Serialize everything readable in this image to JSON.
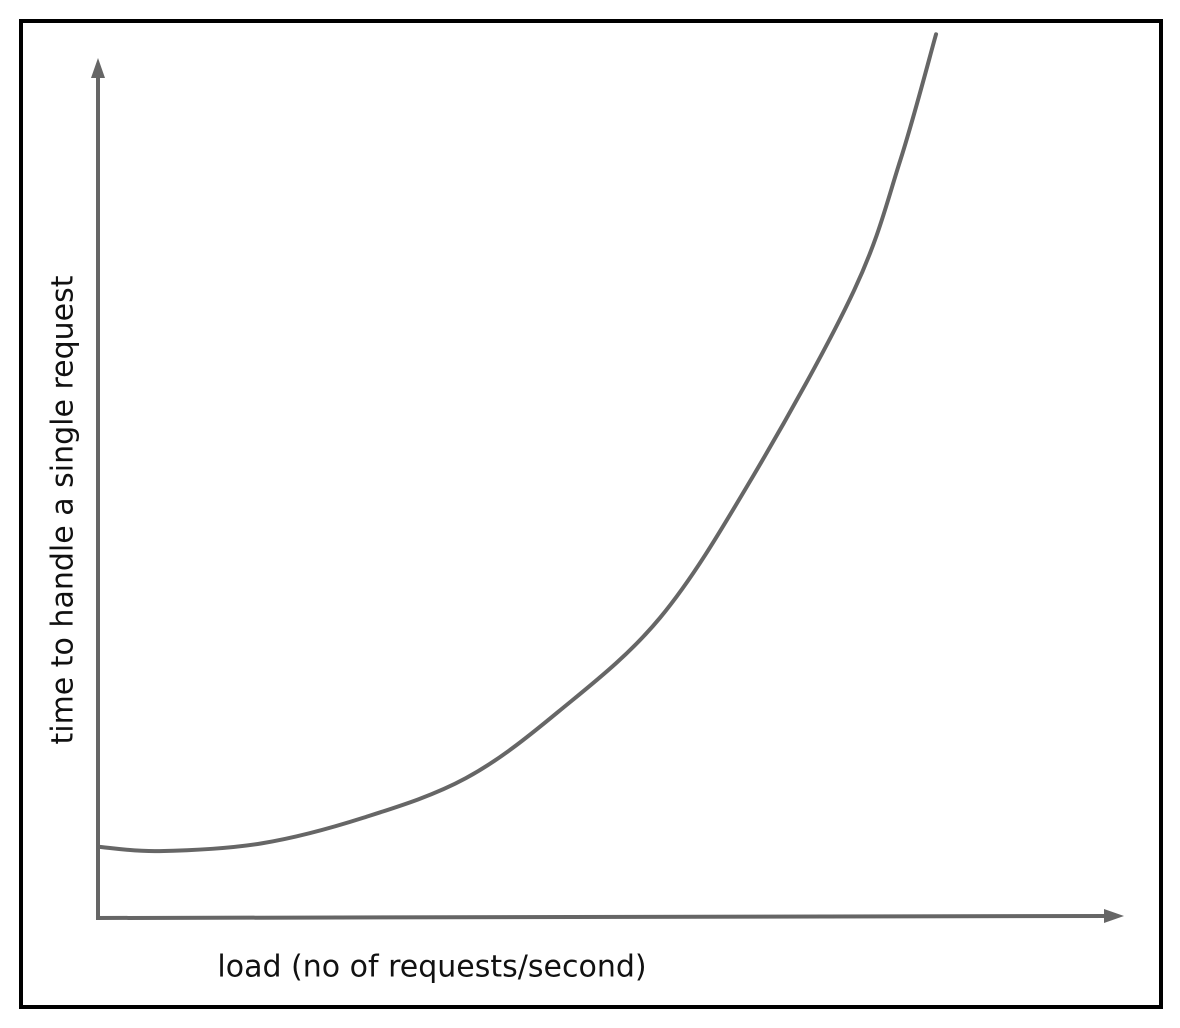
{
  "chart_data": {
    "type": "line",
    "x_label": "load (no of requests/second)",
    "y_label": "time to handle a single request",
    "x": [
      0,
      6,
      16,
      26,
      36,
      45,
      55,
      64,
      74,
      78.5,
      82
    ],
    "values": [
      8.3,
      7.8,
      8.7,
      11.7,
      16.3,
      24,
      35,
      51.3,
      73.2,
      88.3,
      103
    ],
    "color": "#666666",
    "xlim": [
      0,
      100
    ],
    "ylim": [
      0,
      100
    ]
  }
}
